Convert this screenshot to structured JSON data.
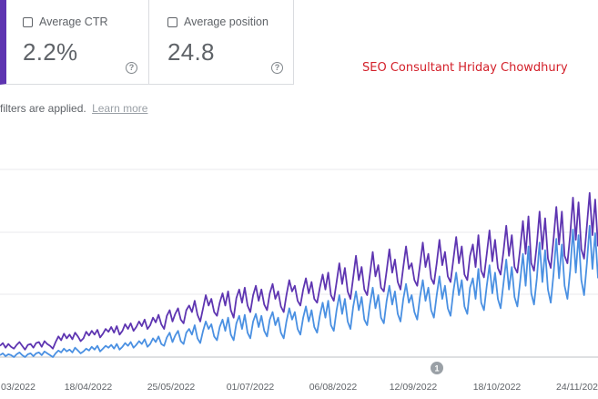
{
  "metrics": [
    {
      "label": "Average CTR",
      "value": "2.2%",
      "help_icon": "help-icon"
    },
    {
      "label": "Average position",
      "value": "24.8",
      "help_icon": "help-icon"
    }
  ],
  "watermark": "SEO Consultant Hriday Chowdhury",
  "filter_note": {
    "text": "filters are applied.",
    "link": "Learn more"
  },
  "colors": {
    "clicks": "#5e35b1",
    "impressions": "#4a90e2",
    "selected_border": "#5e35b1"
  },
  "chart_data": {
    "type": "line",
    "x_tick_labels": [
      "03/2022",
      "18/04/2022",
      "25/05/2022",
      "01/07/2022",
      "06/08/2022",
      "12/09/2022",
      "18/10/2022",
      "24/11/202"
    ],
    "grid": true,
    "annotation": {
      "label": "1",
      "near_tick": "12/09/2022"
    },
    "series": [
      {
        "color": "#5e35b1",
        "values": [
          12,
          15,
          10,
          14,
          11,
          9,
          13,
          16,
          12,
          8,
          13,
          14,
          10,
          15,
          16,
          11,
          17,
          14,
          12,
          9,
          16,
          22,
          18,
          25,
          20,
          24,
          19,
          26,
          22,
          17,
          20,
          27,
          23,
          28,
          24,
          29,
          21,
          25,
          30,
          27,
          32,
          26,
          33,
          24,
          28,
          35,
          30,
          36,
          28,
          32,
          38,
          33,
          40,
          30,
          34,
          42,
          37,
          45,
          35,
          30,
          44,
          50,
          38,
          46,
          52,
          40,
          36,
          50,
          55,
          48,
          60,
          45,
          38,
          52,
          66,
          55,
          62,
          48,
          44,
          58,
          68,
          55,
          70,
          50,
          42,
          63,
          72,
          58,
          74,
          55,
          48,
          66,
          76,
          60,
          72,
          56,
          50,
          68,
          78,
          62,
          70,
          54,
          48,
          66,
          82,
          70,
          76,
          60,
          55,
          72,
          84,
          68,
          80,
          62,
          58,
          74,
          88,
          72,
          90,
          66,
          60,
          80,
          100,
          78,
          95,
          70,
          62,
          85,
          108,
          82,
          96,
          72,
          66,
          88,
          112,
          86,
          98,
          74,
          70,
          92,
          115,
          90,
          104,
          80,
          72,
          96,
          118,
          94,
          100,
          82,
          76,
          98,
          122,
          96,
          110,
          84,
          78,
          100,
          125,
          98,
          112,
          86,
          80,
          104,
          128,
          100,
          118,
          88,
          82,
          108,
          120,
          96,
          130,
          92,
          85,
          110,
          135,
          102,
          125,
          95,
          88,
          112,
          140,
          108,
          130,
          96,
          90,
          115,
          145,
          110,
          150,
          100,
          92,
          120,
          155,
          115,
          148,
          105,
          95,
          125,
          160,
          120,
          155,
          108,
          100,
          130,
          170,
          125,
          165,
          115,
          105,
          140,
          175,
          130,
          168,
          118
        ]
      },
      {
        "color": "#4a90e2",
        "values": [
          2,
          4,
          1,
          3,
          2,
          0,
          3,
          5,
          2,
          0,
          3,
          4,
          1,
          4,
          5,
          2,
          6,
          4,
          2,
          0,
          4,
          7,
          5,
          9,
          6,
          8,
          5,
          10,
          7,
          4,
          6,
          9,
          7,
          11,
          8,
          12,
          6,
          9,
          12,
          10,
          13,
          9,
          14,
          8,
          11,
          15,
          12,
          16,
          10,
          13,
          17,
          14,
          19,
          11,
          14,
          20,
          16,
          22,
          14,
          12,
          21,
          26,
          16,
          23,
          28,
          17,
          14,
          26,
          30,
          24,
          34,
          20,
          15,
          28,
          38,
          30,
          35,
          22,
          18,
          32,
          40,
          28,
          42,
          24,
          18,
          36,
          44,
          30,
          45,
          26,
          20,
          38,
          46,
          32,
          44,
          28,
          22,
          40,
          48,
          34,
          42,
          26,
          20,
          38,
          52,
          40,
          48,
          30,
          24,
          42,
          54,
          38,
          50,
          32,
          26,
          44,
          58,
          42,
          60,
          34,
          28,
          50,
          66,
          46,
          62,
          38,
          30,
          54,
          70,
          50,
          64,
          40,
          34,
          56,
          74,
          52,
          66,
          42,
          36,
          60,
          76,
          56,
          70,
          46,
          38,
          62,
          78,
          58,
          66,
          48,
          40,
          64,
          82,
          60,
          74,
          50,
          42,
          66,
          86,
          62,
          76,
          52,
          44,
          70,
          90,
          66,
          82,
          54,
          46,
          74,
          84,
          62,
          94,
          58,
          50,
          76,
          98,
          68,
          90,
          62,
          52,
          78,
          104,
          72,
          96,
          64,
          54,
          80,
          110,
          76,
          118,
          68,
          56,
          84,
          122,
          80,
          114,
          72,
          58,
          88,
          126,
          84,
          120,
          76,
          62,
          92,
          136,
          90,
          130,
          82,
          66,
          100,
          140,
          94,
          132,
          84
        ]
      }
    ]
  }
}
